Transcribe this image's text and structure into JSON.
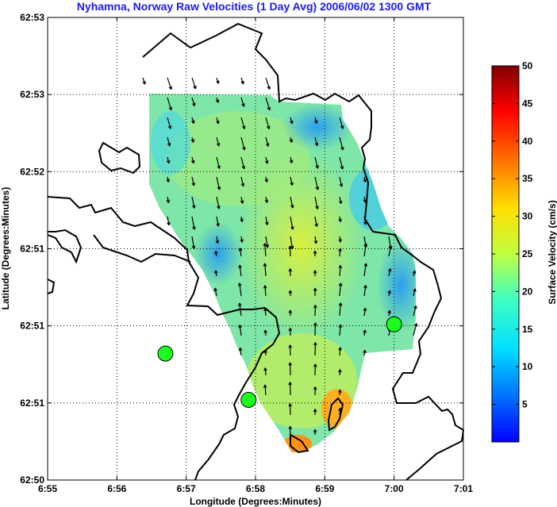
{
  "chart_data": {
    "type": "heatmap",
    "title": "Nyhamna, Norway Raw Velocities (1 Day Avg) 2006/06/02 1300 GMT",
    "xlabel": "Longitude (Degrees:Minutes)",
    "ylabel": "Latitude (Degrees:Minutes)",
    "x_ticks": [
      "6:55",
      "6:56",
      "6:57",
      "6:58",
      "6:59",
      "7:00",
      "7:01"
    ],
    "y_ticks": [
      "62:53",
      "62:53",
      "62:52",
      "62:51",
      "62:51",
      "62:51",
      "62:50"
    ],
    "grid": true,
    "colorbar": {
      "label": "Surface Velocity (cm/s)",
      "ticks": [
        "5",
        "10",
        "15",
        "20",
        "25",
        "30",
        "35",
        "40",
        "45",
        "50"
      ],
      "min": 0,
      "max": 50,
      "colormap": "jet"
    },
    "stations": [
      {
        "lon_min": 56.7,
        "lat_min": 50.82
      },
      {
        "lon_min": 57.9,
        "lat_min": 50.52
      },
      {
        "lon_min": 60.0,
        "lat_min": 51.01
      }
    ],
    "velocity_field": {
      "representative_speed_cm_s": 18,
      "max_speed_cm_s": 30,
      "dominant_direction": "southward in north, northward in south"
    }
  }
}
